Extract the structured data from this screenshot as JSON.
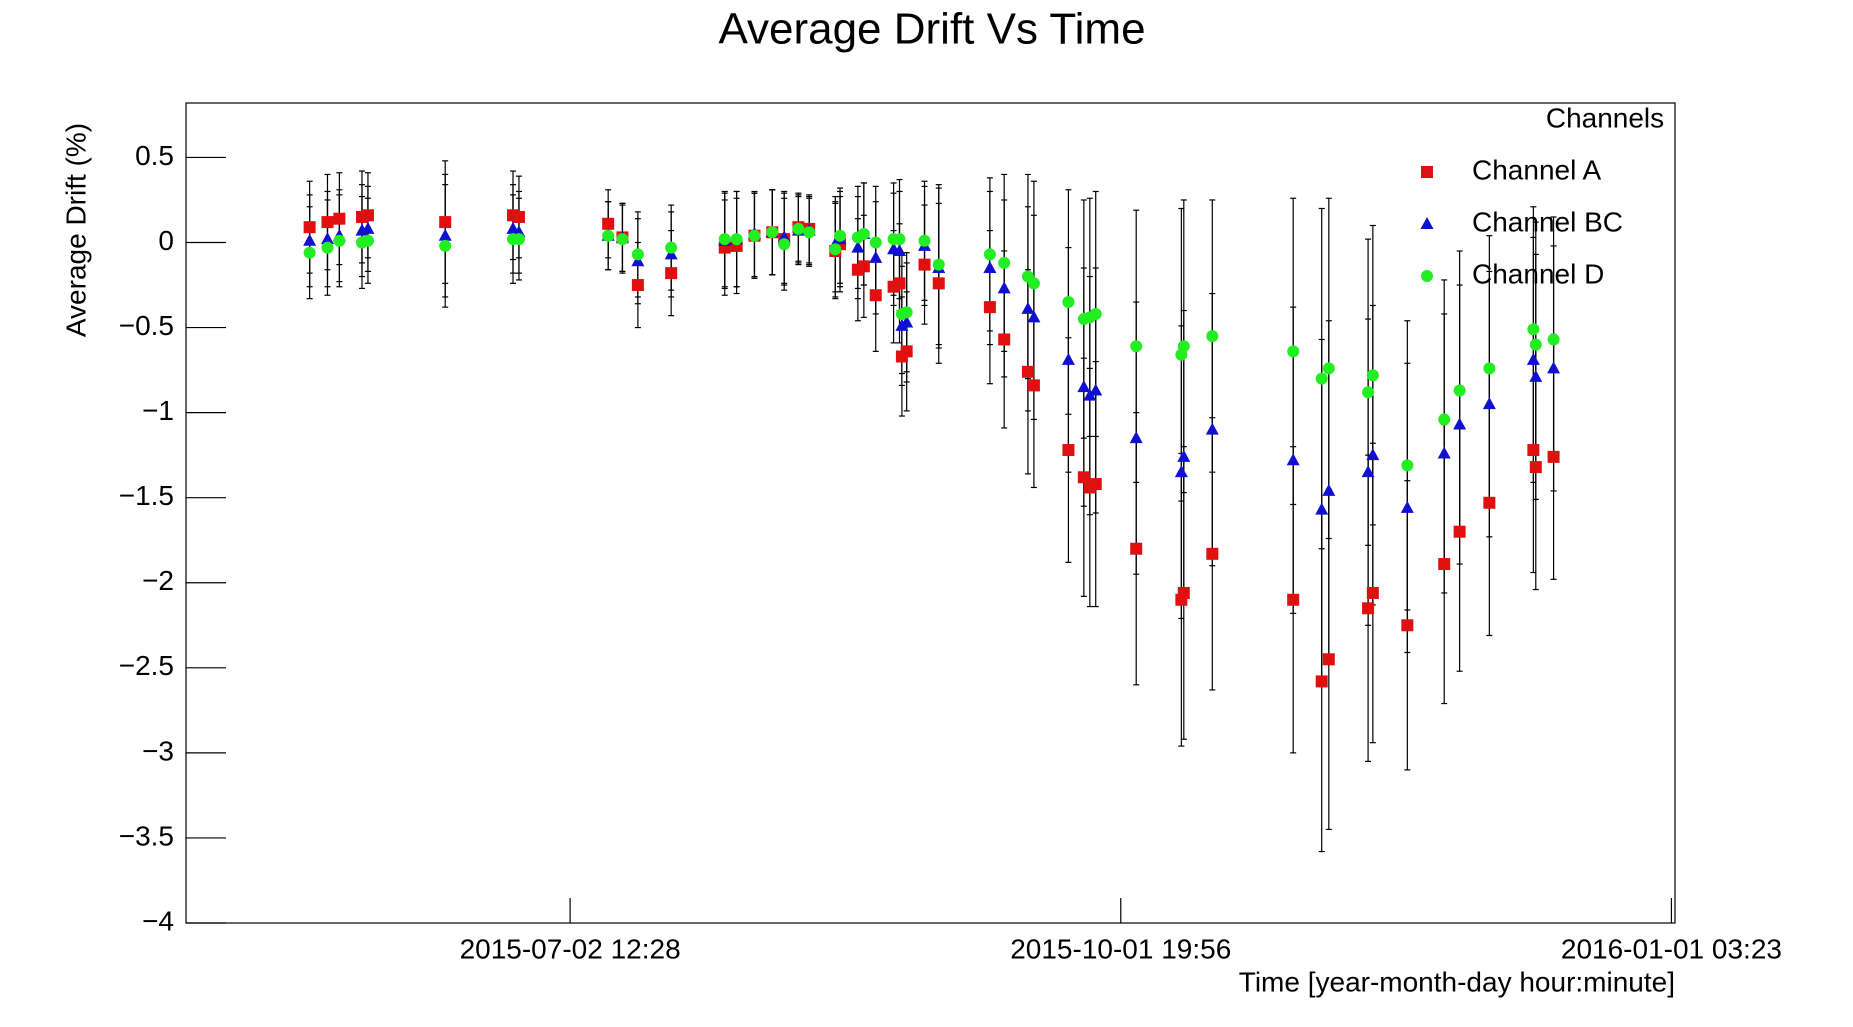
{
  "chart_data": {
    "type": "scatter",
    "title": "Average Drift Vs Time",
    "xlabel": "Time [year-month-day hour:minute]",
    "ylabel": "Average Drift (%)",
    "legend_title": "Channels",
    "legend": "top-right",
    "xlim": [
      "2015-04-29 19:52",
      "2016-01-01 17:35"
    ],
    "xticks": [
      "2015-07-02 12:28",
      "2015-10-01 19:56",
      "2016-01-01 03:23"
    ],
    "ylim": [
      -4,
      0.82
    ],
    "yticks": [
      {
        "value": -4,
        "label": "−4"
      },
      {
        "value": -3.5,
        "label": "−3.5"
      },
      {
        "value": -3,
        "label": "−3"
      },
      {
        "value": -2.5,
        "label": "−2.5"
      },
      {
        "value": -2,
        "label": "−2"
      },
      {
        "value": -1.5,
        "label": "−1.5"
      },
      {
        "value": -1,
        "label": "−1"
      },
      {
        "value": -0.5,
        "label": "−0.5"
      },
      0,
      0.5
    ],
    "x": [
      "2015-05-20 07:54",
      "2015-05-23 06:56",
      "2015-05-25 06:14",
      "2015-05-29 00:14",
      "2015-05-29 23:58",
      "2015-06-11 19:25",
      "2015-06-23 01:12",
      "2015-06-24 00:56",
      "2015-07-08 19:55",
      "2015-07-11 04:46",
      "2015-07-13 18:14",
      "2015-07-19 06:40",
      "2015-07-28 03:52",
      "2015-07-30 03:06",
      "2015-08-02 02:10",
      "2015-08-05 00:58",
      "2015-08-07 00:28",
      "2015-08-09 09:04",
      "2015-08-11 03:52",
      "2015-08-15 11:56",
      "2015-08-16 06:40",
      "2015-08-19 05:46",
      "2015-08-20 05:30",
      "2015-08-22 04:47",
      "2015-08-25 03:50",
      "2015-08-26 03:20",
      "2015-08-26 12:57",
      "2015-08-27 07:52",
      "2015-08-30 06:57",
      "2015-09-01 15:35",
      "2015-09-10 03:06",
      "2015-09-12 11:56",
      "2015-09-16 10:30",
      "2015-09-17 10:16",
      "2015-09-23 03:34",
      "2015-09-25 17:00",
      "2015-09-26 16:48",
      "2015-09-27 16:18",
      "2015-10-04 09:22",
      "2015-10-11 21:06",
      "2015-10-12 06:46",
      "2015-10-17 00:14",
      "2015-10-30 10:04",
      "2015-11-04 03:34",
      "2015-11-05 07:52",
      "2015-11-11 20:10",
      "2015-11-12 15:06",
      "2015-11-18 08:22",
      "2015-11-24 11:04",
      "2015-11-27 00:28",
      "2015-12-01 22:47",
      "2015-12-09 05:58",
      "2015-12-09 15:35",
      "2015-12-12 14:23"
    ],
    "series": [
      {
        "name": "Channel A",
        "color": "#e01010",
        "marker": "square",
        "values": [
          0.09,
          0.12,
          0.14,
          0.15,
          0.16,
          0.12,
          0.16,
          0.15,
          0.11,
          0.03,
          -0.25,
          -0.18,
          -0.03,
          -0.02,
          0.04,
          0.06,
          0.02,
          0.09,
          0.08,
          -0.05,
          -0.01,
          -0.16,
          -0.14,
          -0.31,
          -0.26,
          -0.24,
          -0.67,
          -0.64,
          -0.13,
          -0.24,
          -0.38,
          -0.57,
          -0.76,
          -0.84,
          -1.22,
          -1.38,
          -1.44,
          -1.42,
          -1.8,
          -2.1,
          -2.06,
          -1.83,
          -2.1,
          -2.58,
          -2.45,
          -2.15,
          -2.06,
          -2.25,
          -1.89,
          -1.7,
          -1.53,
          -1.22,
          -1.32,
          -1.26
        ],
        "errors": [
          0.27,
          0.28,
          0.27,
          0.27,
          0.25,
          0.36,
          0.26,
          0.24,
          0.2,
          0.2,
          0.25,
          0.25,
          0.28,
          0.28,
          0.25,
          0.25,
          0.27,
          0.2,
          0.2,
          0.28,
          0.28,
          0.3,
          0.3,
          0.33,
          0.33,
          0.35,
          0.35,
          0.35,
          0.35,
          0.47,
          0.45,
          0.52,
          0.6,
          0.6,
          0.66,
          0.7,
          0.7,
          0.72,
          0.8,
          0.86,
          0.86,
          0.8,
          0.9,
          1.0,
          1.0,
          0.9,
          0.88,
          0.85,
          0.82,
          0.82,
          0.78,
          0.72,
          0.72,
          0.72
        ]
      },
      {
        "name": "Channel BC",
        "color": "#1010d0",
        "marker": "triangle",
        "values": [
          0.01,
          0.02,
          0.04,
          0.07,
          0.08,
          0.04,
          0.08,
          0.06,
          0.04,
          0.03,
          -0.11,
          -0.07,
          0.01,
          0.02,
          0.05,
          0.06,
          0.03,
          0.07,
          0.07,
          -0.01,
          0.02,
          -0.03,
          0.05,
          -0.09,
          -0.04,
          -0.05,
          -0.49,
          -0.47,
          -0.02,
          -0.15,
          -0.15,
          -0.27,
          -0.39,
          -0.44,
          -0.69,
          -0.85,
          -0.9,
          -0.87,
          -1.15,
          -1.35,
          -1.26,
          -1.1,
          -1.28,
          -1.57,
          -1.46,
          -1.35,
          -1.25,
          -1.56,
          -1.24,
          -1.07,
          -0.95,
          -0.69,
          -0.79,
          -0.74
        ],
        "errors": [
          0.27,
          0.28,
          0.27,
          0.27,
          0.25,
          0.36,
          0.26,
          0.24,
          0.2,
          0.2,
          0.25,
          0.25,
          0.28,
          0.28,
          0.25,
          0.25,
          0.27,
          0.2,
          0.2,
          0.28,
          0.28,
          0.3,
          0.3,
          0.33,
          0.33,
          0.35,
          0.35,
          0.35,
          0.35,
          0.47,
          0.45,
          0.52,
          0.6,
          0.6,
          0.66,
          0.7,
          0.7,
          0.72,
          0.8,
          0.86,
          0.86,
          0.8,
          0.9,
          1.0,
          1.0,
          0.9,
          0.88,
          0.85,
          0.82,
          0.82,
          0.78,
          0.72,
          0.72,
          0.72
        ]
      },
      {
        "name": "Channel D",
        "color": "#22ee22",
        "marker": "circle",
        "values": [
          -0.06,
          -0.03,
          0.01,
          0.0,
          0.01,
          -0.02,
          0.02,
          0.02,
          0.04,
          0.02,
          -0.07,
          -0.03,
          0.02,
          0.02,
          0.04,
          0.06,
          -0.01,
          0.08,
          0.06,
          -0.04,
          0.04,
          0.03,
          0.05,
          0.0,
          0.02,
          0.02,
          -0.42,
          -0.41,
          0.01,
          -0.13,
          -0.07,
          -0.12,
          -0.2,
          -0.24,
          -0.35,
          -0.45,
          -0.44,
          -0.42,
          -0.61,
          -0.66,
          -0.61,
          -0.55,
          -0.64,
          -0.8,
          -0.74,
          -0.88,
          -0.78,
          -1.31,
          -1.04,
          -0.87,
          -0.74,
          -0.51,
          -0.6,
          -0.57
        ],
        "errors": [
          0.27,
          0.28,
          0.27,
          0.27,
          0.25,
          0.36,
          0.26,
          0.24,
          0.2,
          0.2,
          0.25,
          0.25,
          0.28,
          0.28,
          0.25,
          0.25,
          0.27,
          0.2,
          0.2,
          0.28,
          0.28,
          0.3,
          0.3,
          0.33,
          0.33,
          0.35,
          0.35,
          0.35,
          0.35,
          0.47,
          0.45,
          0.52,
          0.6,
          0.6,
          0.66,
          0.7,
          0.7,
          0.72,
          0.8,
          0.86,
          0.86,
          0.8,
          0.9,
          1.0,
          1.0,
          0.9,
          0.88,
          0.85,
          0.82,
          0.82,
          0.78,
          0.72,
          0.72,
          0.72
        ]
      }
    ]
  }
}
